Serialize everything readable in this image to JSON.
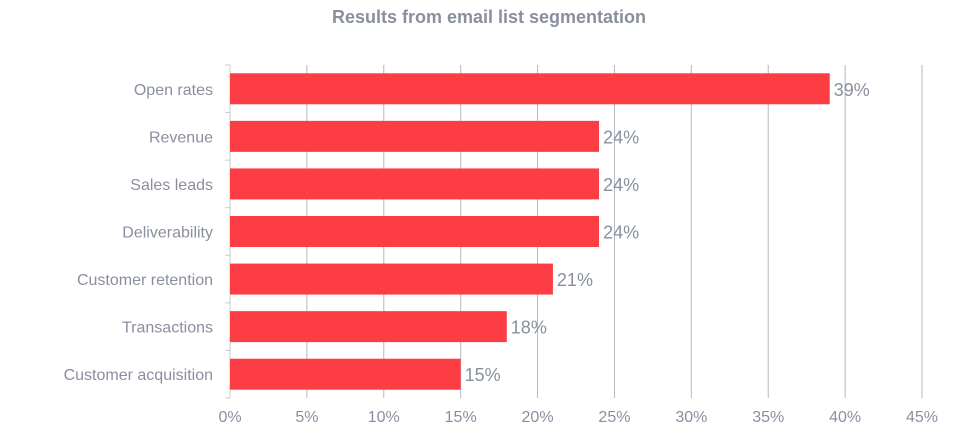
{
  "chart_data": {
    "type": "bar",
    "orientation": "horizontal",
    "title": "Results from email list segmentation",
    "categories": [
      "Open rates",
      "Revenue",
      "Sales leads",
      "Deliverability",
      "Customer retention",
      "Transactions",
      "Customer acquisition"
    ],
    "values": [
      39,
      24,
      24,
      24,
      21,
      18,
      15
    ],
    "data_labels": [
      "39%",
      "24%",
      "24%",
      "24%",
      "21%",
      "18%",
      "15%"
    ],
    "xlim": [
      0,
      45
    ],
    "x_ticks": [
      0,
      5,
      10,
      15,
      20,
      25,
      30,
      35,
      40,
      45
    ],
    "x_tick_labels": [
      "0%",
      "5%",
      "10%",
      "15%",
      "20%",
      "25%",
      "30%",
      "35%",
      "40%",
      "45%"
    ],
    "xlabel": "",
    "ylabel": "",
    "grid": "vertical",
    "legend": "none",
    "colors": {
      "bar": "#fc3d44",
      "text": "#8a8fa0",
      "title": "#8a8fa0",
      "grid": "#b3b7c2",
      "axis": "#c8cbd3"
    }
  }
}
